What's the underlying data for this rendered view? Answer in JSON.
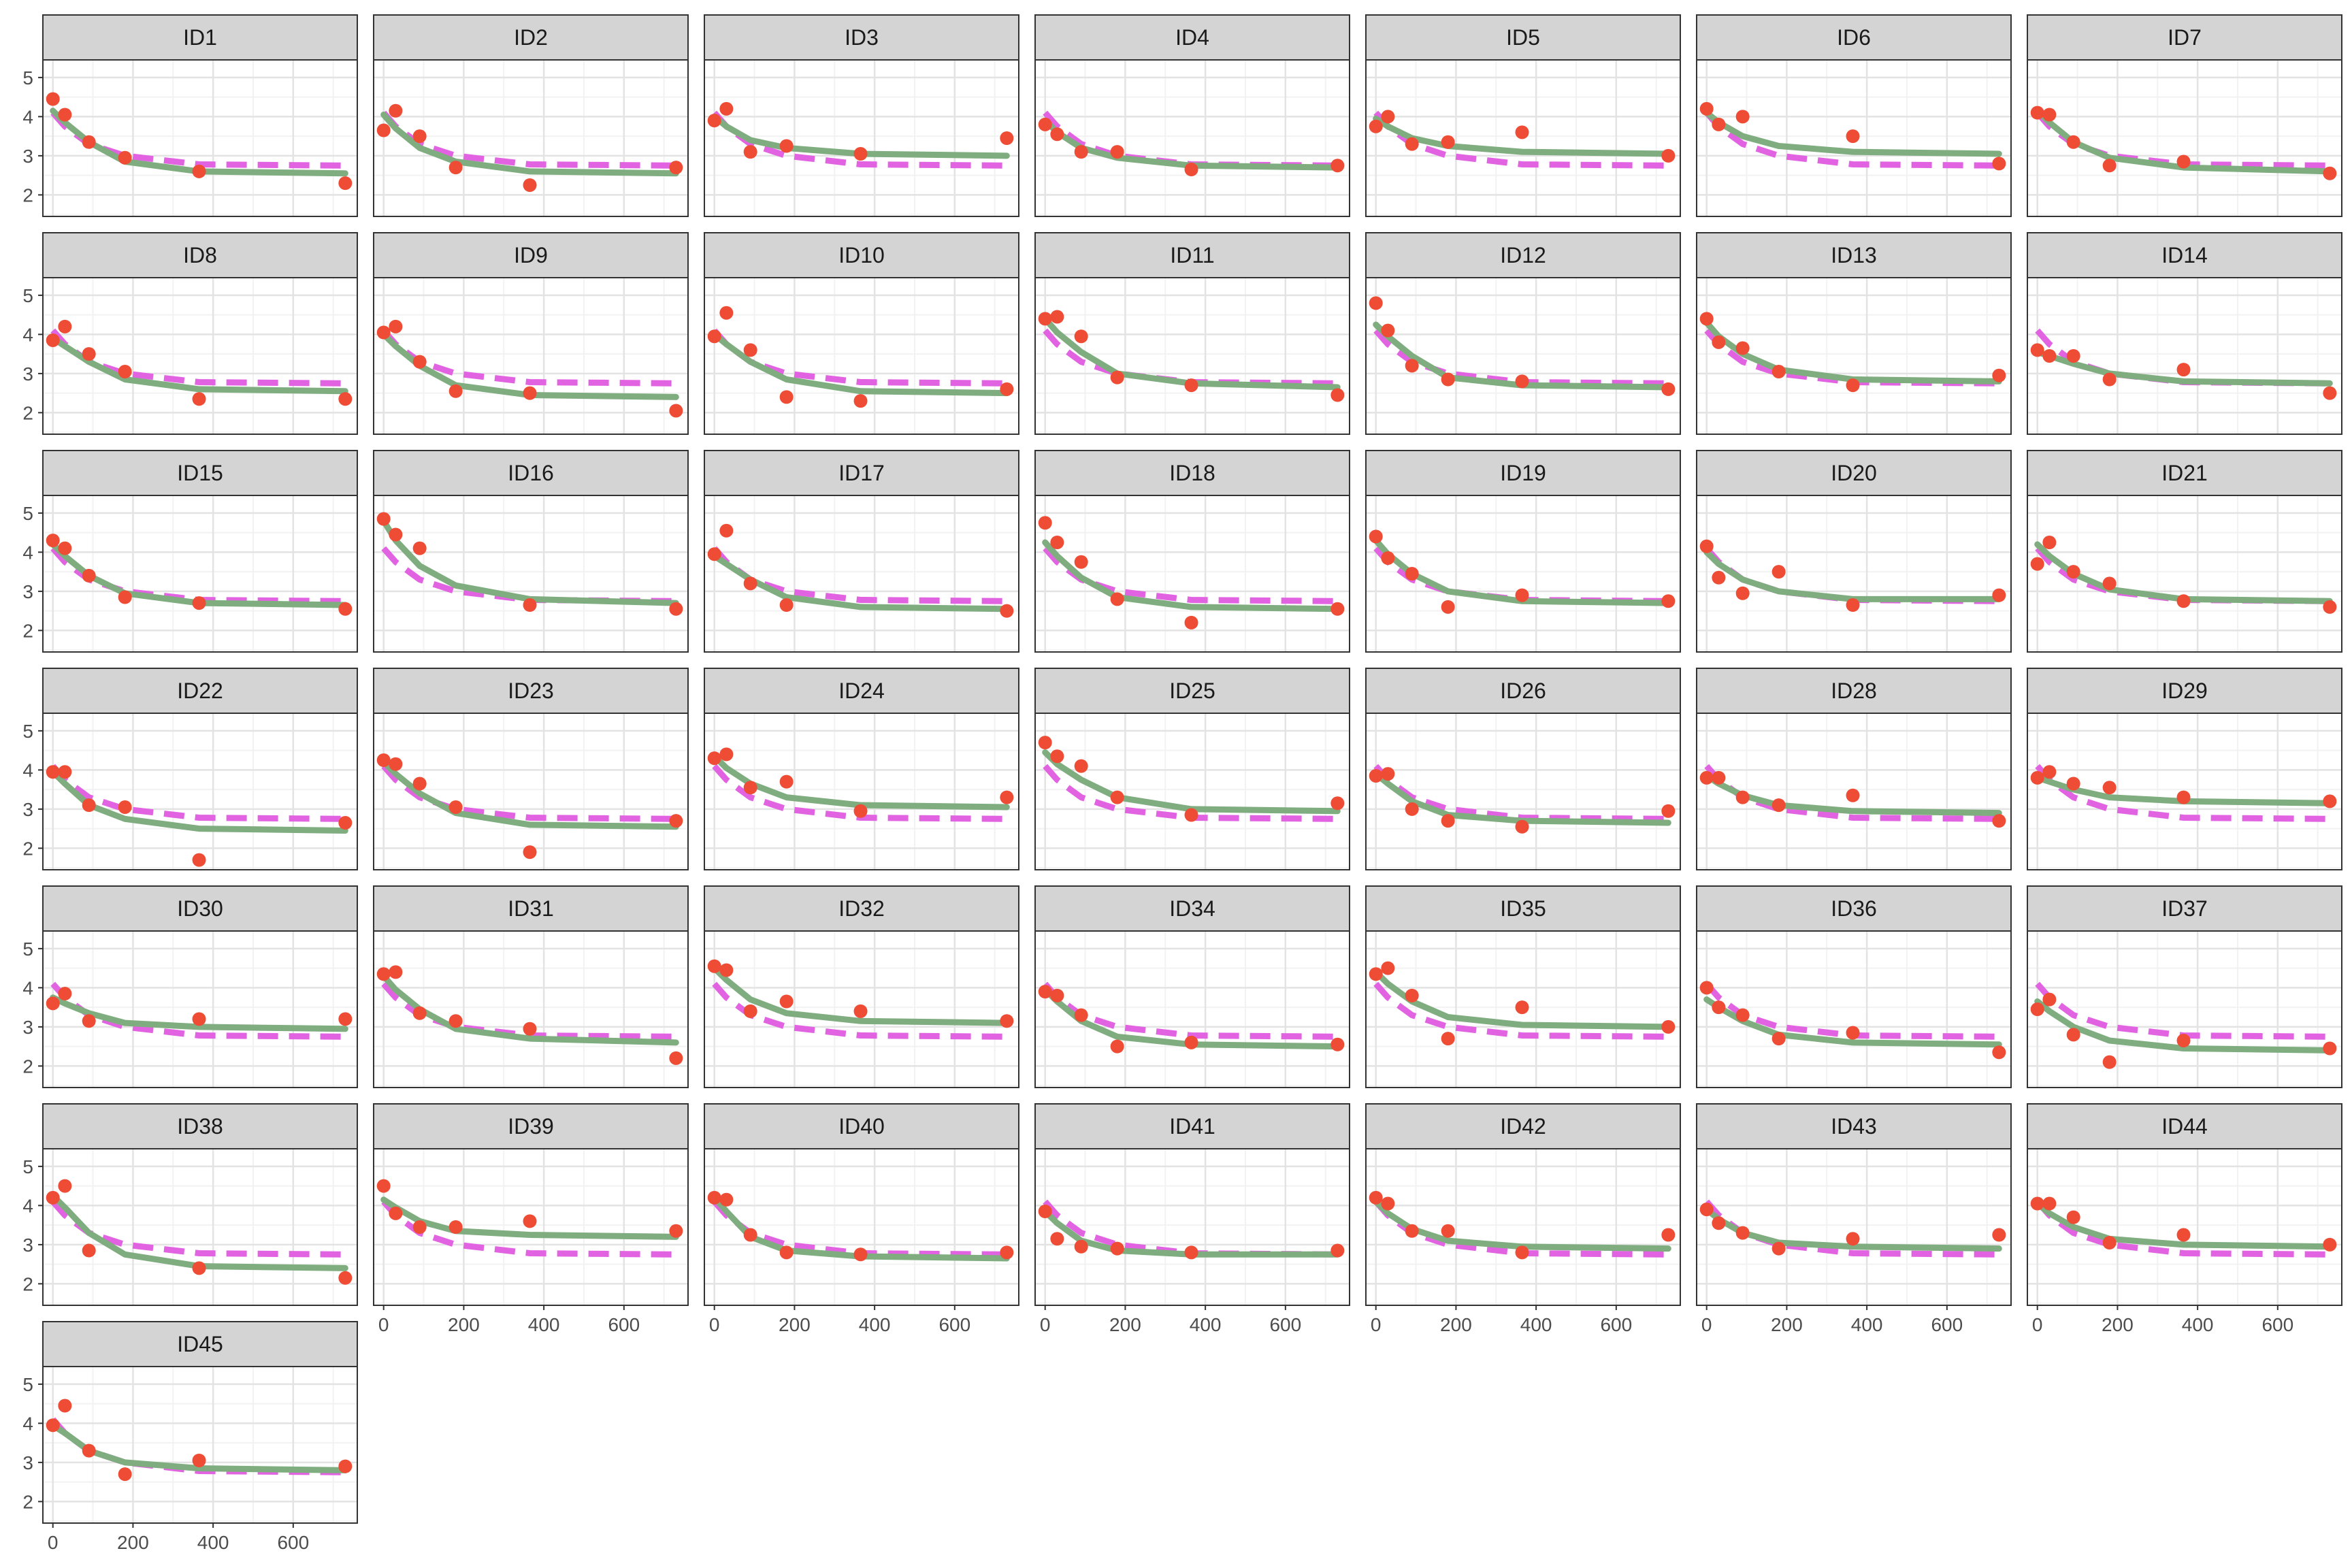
{
  "chart_data": {
    "type": "scatter",
    "layout": "facet-grid",
    "facet_columns": 7,
    "title": "",
    "xlabel": "",
    "ylabel": "",
    "xlim": [
      -25,
      760
    ],
    "ylim": [
      1.45,
      5.45
    ],
    "x_ticks": [
      0,
      200,
      400,
      600
    ],
    "y_ticks": [
      2,
      3,
      4,
      5
    ],
    "grid": true,
    "legend": "none",
    "x": [
      0,
      30,
      90,
      180,
      365,
      730
    ],
    "colors": {
      "points": "#ee4c35",
      "individual_fit": "#7fad7f",
      "population_fit": "#e263e2",
      "strip_fill": "#d4d4d4",
      "panel_border": "#333333",
      "grid_major": "#e3e3e3",
      "grid_minor": "#f2f2f2"
    },
    "population_fit": {
      "name": "",
      "style": "dashed",
      "values": [
        4.1,
        3.75,
        3.3,
        3.0,
        2.78,
        2.75
      ]
    },
    "panels": [
      {
        "id": "ID1",
        "observed": [
          4.45,
          4.05,
          3.35,
          2.95,
          2.6,
          2.3
        ],
        "individual_fit": [
          4.15,
          3.85,
          3.35,
          2.85,
          2.6,
          2.55
        ]
      },
      {
        "id": "ID2",
        "observed": [
          3.65,
          4.15,
          3.5,
          2.7,
          2.25,
          2.7
        ],
        "individual_fit": [
          4.05,
          3.7,
          3.2,
          2.85,
          2.6,
          2.55
        ]
      },
      {
        "id": "ID3",
        "observed": [
          3.9,
          4.2,
          3.1,
          3.25,
          3.05,
          3.45
        ],
        "individual_fit": [
          4.0,
          3.75,
          3.4,
          3.2,
          3.05,
          3.0
        ]
      },
      {
        "id": "ID4",
        "observed": [
          3.8,
          3.55,
          3.1,
          3.1,
          2.65,
          2.75
        ],
        "individual_fit": [
          3.9,
          3.6,
          3.2,
          2.95,
          2.75,
          2.7
        ]
      },
      {
        "id": "ID5",
        "observed": [
          3.75,
          4.0,
          3.3,
          3.35,
          3.6,
          3.0
        ],
        "individual_fit": [
          3.95,
          3.75,
          3.45,
          3.25,
          3.1,
          3.05
        ]
      },
      {
        "id": "ID6",
        "observed": [
          4.2,
          3.8,
          4.0,
          null,
          3.5,
          2.8
        ],
        "individual_fit": [
          4.1,
          3.85,
          3.5,
          3.25,
          3.1,
          3.05
        ]
      },
      {
        "id": "ID7",
        "observed": [
          4.1,
          4.05,
          3.35,
          2.75,
          2.85,
          2.55
        ],
        "individual_fit": [
          4.15,
          3.85,
          3.35,
          2.95,
          2.7,
          2.6
        ]
      },
      {
        "id": "ID8",
        "observed": [
          3.85,
          4.2,
          3.5,
          3.05,
          2.35,
          2.35
        ],
        "individual_fit": [
          3.9,
          3.7,
          3.3,
          2.85,
          2.6,
          2.55
        ]
      },
      {
        "id": "ID9",
        "observed": [
          4.05,
          4.2,
          3.3,
          2.55,
          2.5,
          2.05
        ],
        "individual_fit": [
          4.0,
          3.7,
          3.2,
          2.7,
          2.45,
          2.4
        ]
      },
      {
        "id": "ID10",
        "observed": [
          3.95,
          4.55,
          3.6,
          2.4,
          2.3,
          2.6
        ],
        "individual_fit": [
          4.0,
          3.75,
          3.3,
          2.85,
          2.55,
          2.5
        ]
      },
      {
        "id": "ID11",
        "observed": [
          4.4,
          4.45,
          3.95,
          2.9,
          2.7,
          2.45
        ],
        "individual_fit": [
          4.4,
          4.05,
          3.55,
          3.0,
          2.75,
          2.65
        ]
      },
      {
        "id": "ID12",
        "observed": [
          4.8,
          4.1,
          3.2,
          2.85,
          2.8,
          2.6
        ],
        "individual_fit": [
          4.25,
          3.95,
          3.45,
          2.9,
          2.7,
          2.65
        ]
      },
      {
        "id": "ID13",
        "observed": [
          4.4,
          3.8,
          3.65,
          3.05,
          2.7,
          2.95
        ],
        "individual_fit": [
          4.3,
          3.95,
          3.5,
          3.1,
          2.85,
          2.8
        ]
      },
      {
        "id": "ID14",
        "observed": [
          3.6,
          3.45,
          3.45,
          2.85,
          3.1,
          2.5
        ],
        "individual_fit": [
          3.55,
          3.45,
          3.25,
          3.0,
          2.8,
          2.75
        ]
      },
      {
        "id": "ID15",
        "observed": [
          4.3,
          4.1,
          3.4,
          2.85,
          2.7,
          2.55
        ],
        "individual_fit": [
          4.2,
          3.9,
          3.4,
          2.95,
          2.7,
          2.65
        ]
      },
      {
        "id": "ID16",
        "observed": [
          4.85,
          4.45,
          4.1,
          null,
          2.65,
          2.55
        ],
        "individual_fit": [
          4.8,
          4.3,
          3.65,
          3.15,
          2.8,
          2.7
        ]
      },
      {
        "id": "ID17",
        "observed": [
          3.95,
          4.55,
          3.2,
          2.65,
          null,
          2.5
        ],
        "individual_fit": [
          3.9,
          3.7,
          3.3,
          2.85,
          2.6,
          2.55
        ]
      },
      {
        "id": "ID18",
        "observed": [
          4.75,
          4.25,
          3.75,
          2.8,
          2.2,
          2.55
        ],
        "individual_fit": [
          4.25,
          3.9,
          3.35,
          2.85,
          2.6,
          2.55
        ]
      },
      {
        "id": "ID19",
        "observed": [
          4.4,
          3.85,
          3.45,
          2.6,
          2.9,
          2.75
        ],
        "individual_fit": [
          4.3,
          3.95,
          3.45,
          3.0,
          2.75,
          2.7
        ]
      },
      {
        "id": "ID20",
        "observed": [
          4.15,
          3.35,
          2.95,
          3.5,
          2.65,
          2.9
        ],
        "individual_fit": [
          4.0,
          3.7,
          3.3,
          3.0,
          2.8,
          2.8
        ]
      },
      {
        "id": "ID21",
        "observed": [
          3.7,
          4.25,
          3.5,
          3.2,
          2.75,
          2.6
        ],
        "individual_fit": [
          4.2,
          3.9,
          3.45,
          3.05,
          2.8,
          2.75
        ]
      },
      {
        "id": "ID22",
        "observed": [
          3.95,
          3.95,
          3.1,
          3.05,
          1.7,
          2.65
        ],
        "individual_fit": [
          3.95,
          3.65,
          3.1,
          2.75,
          2.5,
          2.45
        ]
      },
      {
        "id": "ID23",
        "observed": [
          4.25,
          4.15,
          3.65,
          3.05,
          1.9,
          2.7
        ],
        "individual_fit": [
          4.2,
          3.9,
          3.4,
          2.9,
          2.6,
          2.55
        ]
      },
      {
        "id": "ID24",
        "observed": [
          4.3,
          4.4,
          3.55,
          3.7,
          2.95,
          3.3
        ],
        "individual_fit": [
          4.35,
          4.05,
          3.65,
          3.3,
          3.1,
          3.05
        ]
      },
      {
        "id": "ID25",
        "observed": [
          4.7,
          4.35,
          4.1,
          3.3,
          2.85,
          3.15
        ],
        "individual_fit": [
          4.45,
          4.15,
          3.75,
          3.3,
          3.0,
          2.95
        ]
      },
      {
        "id": "ID26",
        "observed": [
          3.85,
          3.9,
          3.0,
          2.7,
          2.55,
          2.95
        ],
        "individual_fit": [
          3.9,
          3.65,
          3.2,
          2.85,
          2.7,
          2.65
        ]
      },
      {
        "id": "ID28",
        "observed": [
          3.8,
          3.8,
          3.3,
          3.1,
          3.35,
          2.7
        ],
        "individual_fit": [
          3.85,
          3.65,
          3.35,
          3.1,
          2.95,
          2.9
        ]
      },
      {
        "id": "ID29",
        "observed": [
          3.8,
          3.95,
          3.65,
          3.55,
          3.3,
          3.2
        ],
        "individual_fit": [
          3.8,
          3.7,
          3.5,
          3.3,
          3.2,
          3.15
        ]
      },
      {
        "id": "ID30",
        "observed": [
          3.6,
          3.85,
          3.15,
          null,
          3.2,
          3.2
        ],
        "individual_fit": [
          3.75,
          3.6,
          3.35,
          3.1,
          3.0,
          2.95
        ]
      },
      {
        "id": "ID31",
        "observed": [
          4.35,
          4.4,
          3.35,
          3.15,
          2.95,
          2.2
        ],
        "individual_fit": [
          4.3,
          3.95,
          3.45,
          2.95,
          2.7,
          2.6
        ]
      },
      {
        "id": "ID32",
        "observed": [
          4.55,
          4.45,
          3.4,
          3.65,
          3.4,
          3.15
        ],
        "individual_fit": [
          4.5,
          4.2,
          3.7,
          3.35,
          3.15,
          3.1
        ]
      },
      {
        "id": "ID34",
        "observed": [
          3.9,
          3.8,
          3.3,
          2.5,
          2.6,
          2.55
        ],
        "individual_fit": [
          3.95,
          3.65,
          3.15,
          2.75,
          2.55,
          2.5
        ]
      },
      {
        "id": "ID35",
        "observed": [
          4.35,
          4.5,
          3.8,
          2.7,
          3.5,
          3.0
        ],
        "individual_fit": [
          4.4,
          4.1,
          3.65,
          3.25,
          3.05,
          3.0
        ]
      },
      {
        "id": "ID36",
        "observed": [
          4.0,
          3.5,
          3.3,
          2.7,
          2.85,
          2.35
        ],
        "individual_fit": [
          3.7,
          3.5,
          3.15,
          2.8,
          2.6,
          2.55
        ]
      },
      {
        "id": "ID37",
        "observed": [
          3.45,
          3.7,
          2.8,
          2.1,
          2.65,
          2.45
        ],
        "individual_fit": [
          3.65,
          3.4,
          3.0,
          2.65,
          2.45,
          2.4
        ]
      },
      {
        "id": "ID38",
        "observed": [
          4.2,
          4.5,
          2.85,
          null,
          2.4,
          2.15
        ],
        "individual_fit": [
          4.25,
          3.95,
          3.3,
          2.75,
          2.45,
          2.4
        ]
      },
      {
        "id": "ID39",
        "observed": [
          4.5,
          3.8,
          3.45,
          3.45,
          3.6,
          3.35
        ],
        "individual_fit": [
          4.15,
          3.95,
          3.6,
          3.35,
          3.25,
          3.2
        ]
      },
      {
        "id": "ID40",
        "observed": [
          4.2,
          4.15,
          3.25,
          2.8,
          2.75,
          2.8
        ],
        "individual_fit": [
          4.2,
          3.85,
          3.2,
          2.85,
          2.7,
          2.65
        ]
      },
      {
        "id": "ID41",
        "observed": [
          3.85,
          3.15,
          2.95,
          2.9,
          2.8,
          2.85
        ],
        "individual_fit": [
          3.85,
          3.55,
          3.1,
          2.85,
          2.75,
          2.75
        ]
      },
      {
        "id": "ID42",
        "observed": [
          4.2,
          4.05,
          3.35,
          3.35,
          2.8,
          3.25
        ],
        "individual_fit": [
          4.1,
          3.8,
          3.4,
          3.1,
          2.95,
          2.9
        ]
      },
      {
        "id": "ID43",
        "observed": [
          3.9,
          3.55,
          3.3,
          2.9,
          3.15,
          3.25
        ],
        "individual_fit": [
          3.9,
          3.65,
          3.3,
          3.05,
          2.95,
          2.9
        ]
      },
      {
        "id": "ID44",
        "observed": [
          4.05,
          4.05,
          3.7,
          3.05,
          3.25,
          3.0
        ],
        "individual_fit": [
          4.05,
          3.8,
          3.45,
          3.15,
          3.0,
          2.95
        ]
      },
      {
        "id": "ID45",
        "observed": [
          3.95,
          4.45,
          3.3,
          2.7,
          3.05,
          2.9
        ],
        "individual_fit": [
          3.95,
          3.75,
          3.3,
          3.0,
          2.85,
          2.8
        ]
      }
    ]
  }
}
